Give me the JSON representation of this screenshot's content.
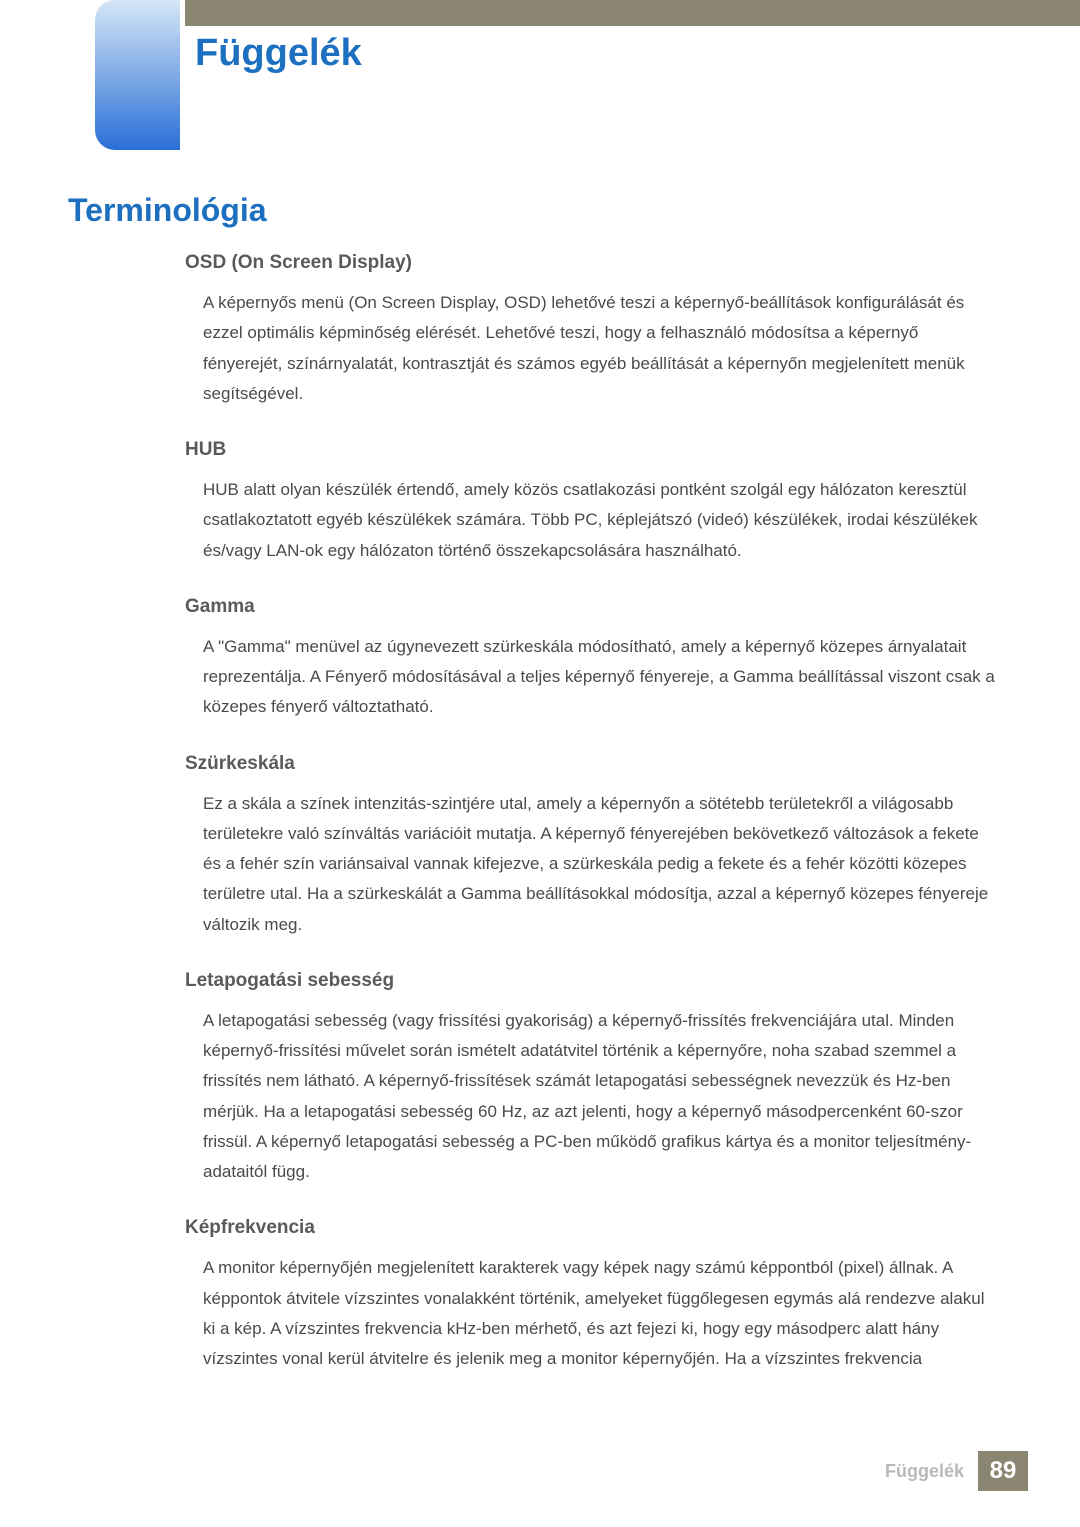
{
  "colors": {
    "top_bar": "#8a8672",
    "tab_gradient_top": "#d5e6f7",
    "tab_gradient_bottom": "#2a6fd6",
    "chapter_title": "#1d6fbf",
    "section_title": "#1d6fbf",
    "term_title": "#5a5a5a",
    "body_text": "#4a4a4a",
    "footer_label": "#b9b9b9",
    "page_box": "#8a8672",
    "page_num": "#ffffff"
  },
  "chapter_title": "Függelék",
  "section_title": "Terminológia",
  "terms": [
    {
      "title": "OSD (On Screen Display)",
      "body": "A képernyős menü (On Screen Display, OSD) lehetővé teszi a képernyő-beállítások konfigurálását és ezzel optimális képminőség elérését. Lehetővé teszi, hogy a felhasználó módosítsa a képernyő fényerejét, színárnyalatát, kontrasztját és számos egyéb beállítását a képernyőn megjelenített menük segítségével."
    },
    {
      "title": "HUB",
      "body": "HUB alatt olyan készülék értendő, amely közös csatlakozási pontként szolgál egy hálózaton keresztül csatlakoztatott egyéb készülékek számára. Több PC, képlejátszó (videó) készülékek, irodai készülékek és/vagy LAN-ok egy hálózaton történő összekapcsolására használható."
    },
    {
      "title": "Gamma",
      "body": "A \"Gamma\" menüvel az úgynevezett szürkeskála módosítható, amely a képernyő közepes árnyalatait reprezentálja. A Fényerő módosításával a teljes képernyő fényereje, a Gamma beállítással viszont csak a közepes fényerő változtatható."
    },
    {
      "title": "Szürkeskála",
      "body": "Ez a skála a színek intenzitás-szintjére utal, amely a képernyőn a sötétebb területekről a világosabb területekre való színváltás variációit mutatja. A képernyő fényerejében bekövetkező változások a fekete és a fehér szín variánsaival vannak kifejezve, a szürkeskála pedig a fekete és a fehér közötti közepes területre utal. Ha a szürkeskálát a Gamma beállításokkal módosítja, azzal a képernyő közepes fényereje változik meg."
    },
    {
      "title": "Letapogatási sebesség",
      "body": "A letapogatási sebesség (vagy frissítési gyakoriság) a képernyő-frissítés frekvenciájára utal. Minden képernyő-frissítési művelet során ismételt adatátvitel történik a képernyőre, noha szabad szemmel a frissítés nem látható. A képernyő-frissítések számát letapogatási sebességnek nevezzük és Hz-ben mérjük. Ha a letapogatási sebesség 60 Hz, az azt jelenti, hogy a képernyő másodpercenként 60-szor frissül. A képernyő letapogatási sebesség a PC-ben működő grafikus kártya és a monitor teljesítmény-adataitól függ."
    },
    {
      "title": "Képfrekvencia",
      "body": "A monitor képernyőjén megjelenített karakterek vagy képek nagy számú képpontból (pixel) állnak. A képpontok átvitele vízszintes vonalakként történik, amelyeket függőlegesen egymás alá rendezve alakul ki a kép. A vízszintes frekvencia kHz-ben mérhető, és azt fejezi ki, hogy egy másodperc alatt hány vízszintes vonal kerül átvitelre és jelenik meg a monitor képernyőjén. Ha a vízszintes frekvencia"
    }
  ],
  "footer": {
    "label": "Függelék",
    "page_number": "89"
  }
}
